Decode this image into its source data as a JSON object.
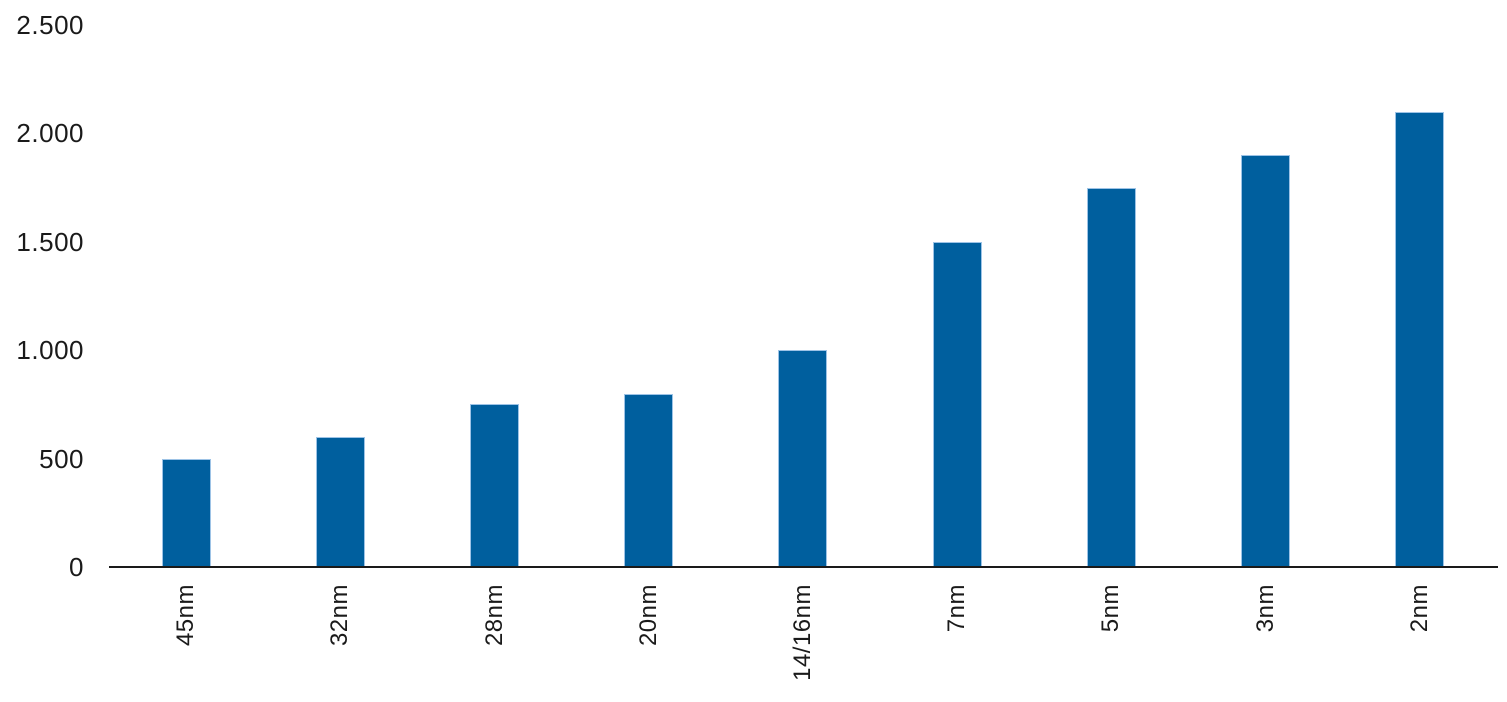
{
  "chart_data": {
    "type": "bar",
    "title": "",
    "xlabel": "",
    "ylabel": "",
    "categories": [
      "45nm",
      "32nm",
      "28nm",
      "20nm",
      "14/16nm",
      "7nm",
      "5nm",
      "3nm",
      "2nm"
    ],
    "values": [
      500,
      600,
      750,
      800,
      1000,
      1500,
      1750,
      1900,
      2100
    ],
    "ylim": [
      0,
      2500
    ],
    "ytick_values": [
      0,
      500,
      1000,
      1500,
      2000,
      2500
    ],
    "ytick_labels": [
      "0",
      "500",
      "1.000",
      "1.500",
      "2.000",
      "2.500"
    ],
    "grid": false,
    "legend": false,
    "colors": {
      "bar_fill": "#005f9e",
      "bar_border": "#9dc3e6",
      "axis_line": "#1a1a1a",
      "text": "#1a1a1a",
      "background": "#ffffff"
    }
  }
}
